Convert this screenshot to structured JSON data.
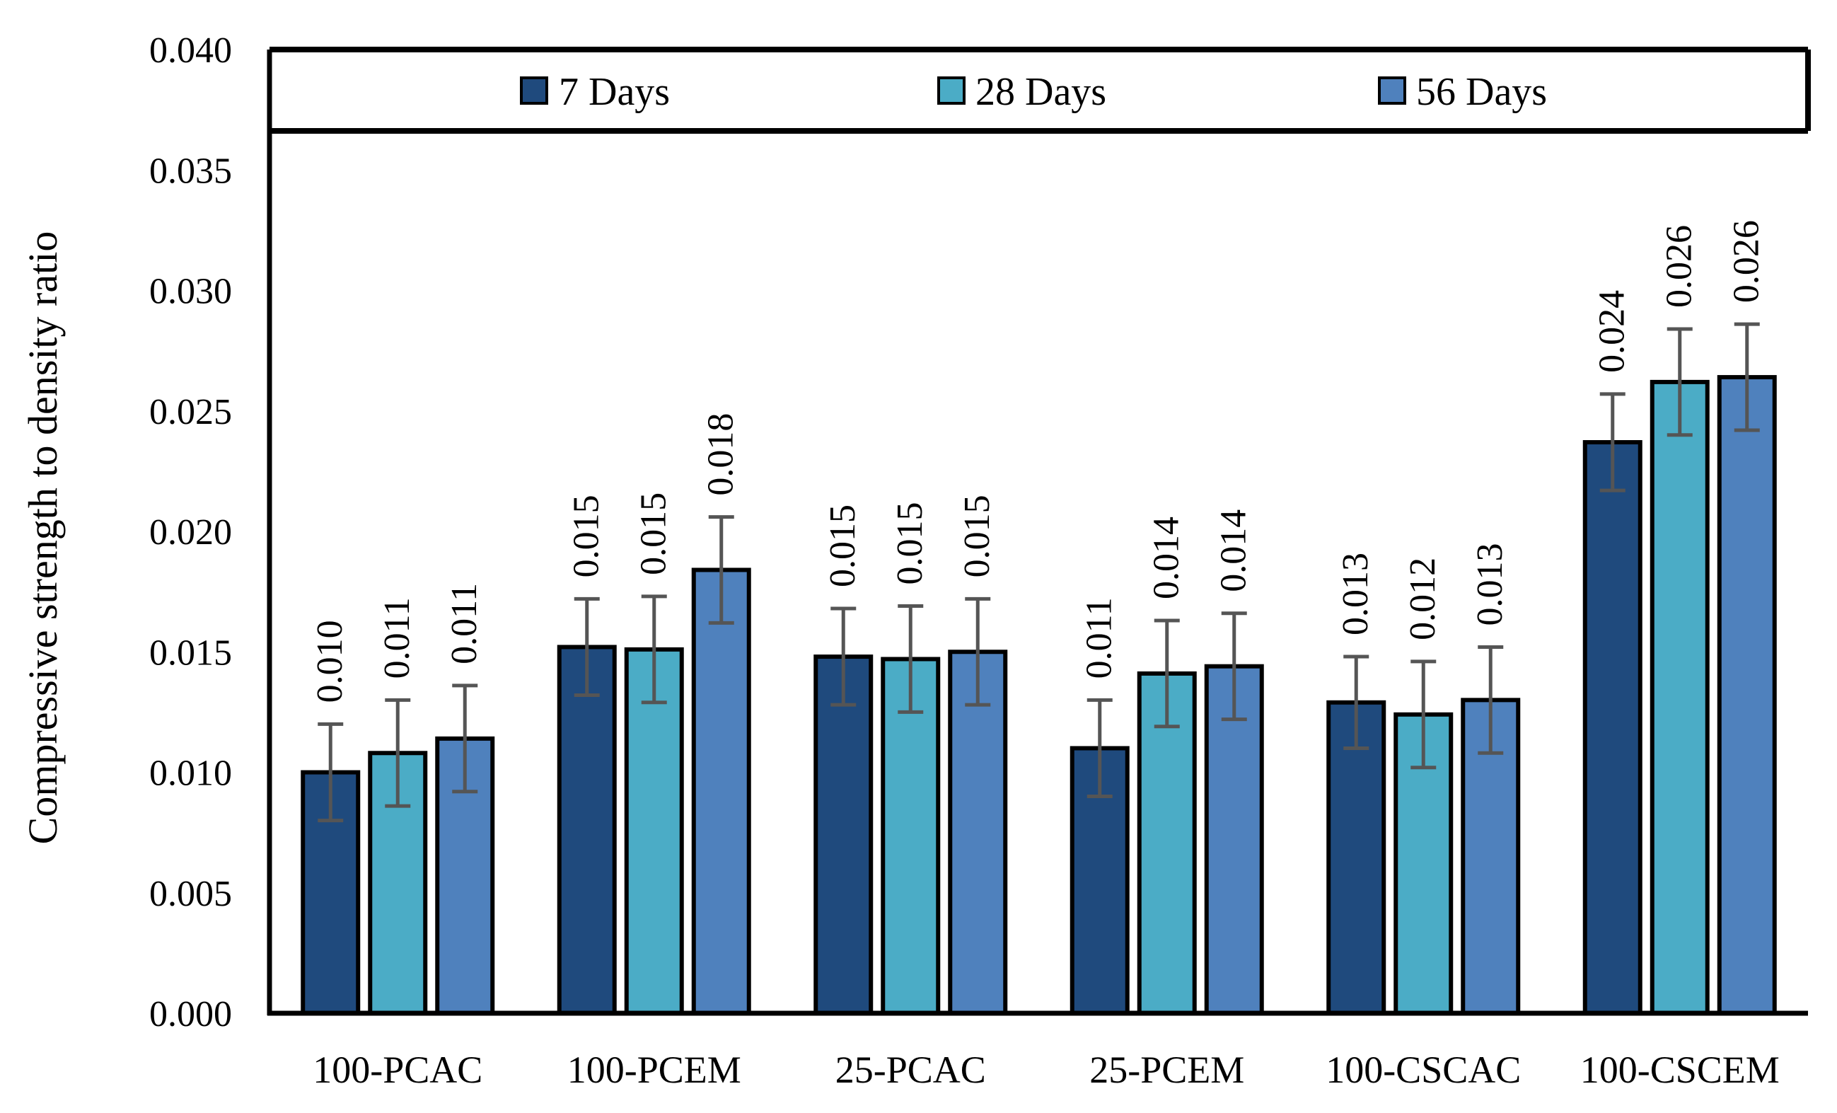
{
  "chart_data": {
    "type": "bar",
    "title": "",
    "xlabel": "",
    "ylabel": "Compressive strength to density ratio",
    "ylim": [
      0,
      0.04
    ],
    "yticks": [
      "0.000",
      "0.005",
      "0.010",
      "0.015",
      "0.020",
      "0.025",
      "0.030",
      "0.035",
      "0.040"
    ],
    "categories": [
      "100-PCAC",
      "100-PCEM",
      "25-PCAC",
      "25-PCEM",
      "100-CSCAC",
      "100-CSCEM"
    ],
    "legend_position": "top (inside plot frame)",
    "grid": false,
    "error_bars": true,
    "series": [
      {
        "name": "7 Days",
        "color": "#1f4a7d",
        "values": [
          0.01,
          0.0152,
          0.0148,
          0.011,
          0.0129,
          0.0237
        ],
        "error": [
          0.002,
          0.002,
          0.002,
          0.002,
          0.0019,
          0.002
        ],
        "labels": [
          "0.010",
          "0.015",
          "0.015",
          "0.011",
          "0.013",
          "0.024"
        ]
      },
      {
        "name": "28 Days",
        "color": "#4bacc6",
        "values": [
          0.0108,
          0.0151,
          0.0147,
          0.0141,
          0.0124,
          0.0262
        ],
        "error": [
          0.0022,
          0.0022,
          0.0022,
          0.0022,
          0.0022,
          0.0022
        ],
        "labels": [
          "0.011",
          "0.015",
          "0.015",
          "0.014",
          "0.012",
          "0.026"
        ]
      },
      {
        "name": "56 Days",
        "color": "#4f81bd",
        "values": [
          0.0114,
          0.0184,
          0.015,
          0.0144,
          0.013,
          0.0264
        ],
        "error": [
          0.0022,
          0.0022,
          0.0022,
          0.0022,
          0.0022,
          0.0022
        ],
        "labels": [
          "0.011",
          "0.018",
          "0.015",
          "0.014",
          "0.013",
          "0.026"
        ]
      }
    ]
  }
}
